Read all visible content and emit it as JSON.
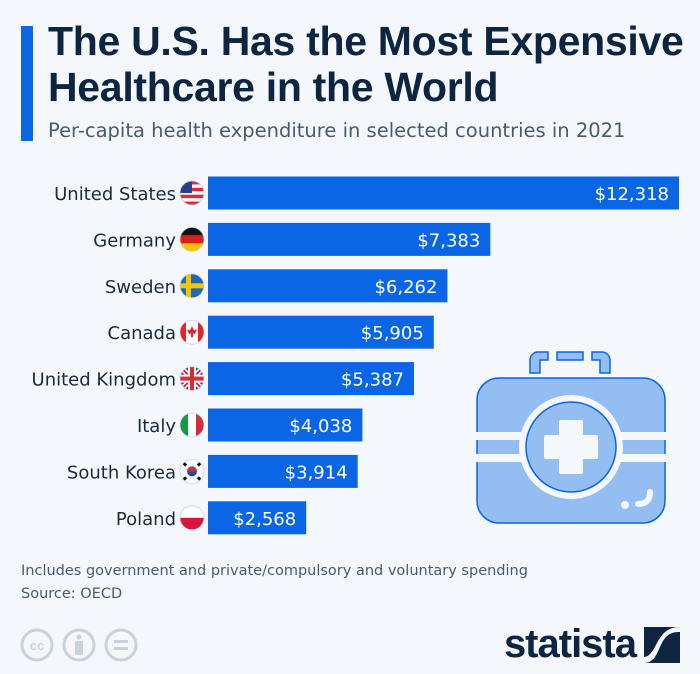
{
  "title_line1": "The U.S. Has the Most Expensive",
  "title_line2": "Healthcare in the World",
  "subtitle": "Per-capita health expenditure in selected countries in 2021",
  "footnote": "Includes government and private/compulsory and voluntary spending",
  "source": "Source: OECD",
  "brand": "statista",
  "colors": {
    "bar": "#0a66e4",
    "title": "#0d2541",
    "text": "#475b73",
    "background": "#f4f7fb",
    "icon": "#94bdf2"
  },
  "icons": [
    "first-aid-kit-icon",
    "cc-icon",
    "attribution-icon",
    "no-derivatives-icon",
    "statista-logo-icon"
  ],
  "chart_data": {
    "type": "bar",
    "orientation": "horizontal",
    "categories": [
      "United States",
      "Germany",
      "Sweden",
      "Canada",
      "United Kingdom",
      "Italy",
      "South Korea",
      "Poland"
    ],
    "values": [
      12318,
      7383,
      6262,
      5905,
      5387,
      4038,
      3914,
      2568
    ],
    "labels": [
      "$12,318",
      "$7,383",
      "$6,262",
      "$5,905",
      "$5,387",
      "$4,038",
      "$3,914",
      "$2,568"
    ],
    "flags": [
      "us-flag-icon",
      "germany-flag-icon",
      "sweden-flag-icon",
      "canada-flag-icon",
      "uk-flag-icon",
      "italy-flag-icon",
      "south-korea-flag-icon",
      "poland-flag-icon"
    ],
    "unit": "USD",
    "xlim": [
      0,
      12318
    ],
    "grid": false
  }
}
